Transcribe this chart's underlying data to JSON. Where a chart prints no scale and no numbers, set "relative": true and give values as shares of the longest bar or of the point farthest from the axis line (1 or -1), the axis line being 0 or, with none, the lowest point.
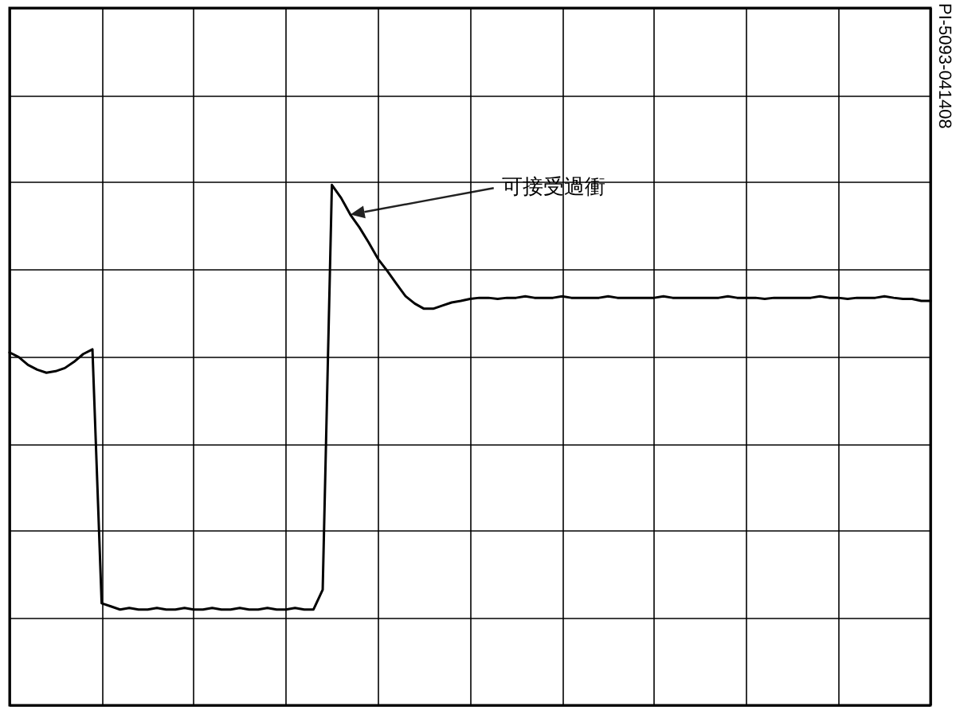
{
  "chart_data": {
    "type": "line",
    "relative": true,
    "grid": true,
    "line_style": "solid",
    "annotations": [
      "可接受過衝",
      "PI-5093-041408"
    ],
    "categories": [
      null,
      null,
      null,
      null,
      null,
      null,
      null,
      null,
      null,
      null,
      null,
      null,
      null,
      null,
      null,
      null,
      null,
      null,
      null,
      null,
      null,
      null,
      null,
      null,
      null,
      null,
      null,
      null,
      null,
      null,
      null,
      null,
      null,
      null,
      null,
      null,
      null,
      null,
      null,
      null,
      null,
      null,
      null,
      null,
      null,
      null,
      null,
      null,
      null,
      null,
      null,
      null,
      null,
      null,
      null,
      null,
      null,
      null,
      null,
      null,
      null,
      null,
      null,
      null,
      null,
      null,
      null,
      null,
      null,
      null,
      null,
      null,
      null,
      null,
      null,
      null,
      null,
      null,
      null,
      null,
      null,
      null,
      null,
      null,
      null,
      null,
      null,
      null,
      null,
      null,
      null,
      null,
      null,
      null,
      null,
      null,
      null,
      null,
      null,
      null,
      null
    ],
    "series": [
      {
        "color": "#000000",
        "values": [
          0.678,
          0.669,
          0.654,
          0.645,
          0.639,
          0.642,
          0.648,
          0.66,
          0.675,
          0.684,
          0.196,
          0.19,
          0.184,
          0.187,
          0.184,
          0.184,
          0.187,
          0.184,
          0.184,
          0.187,
          0.184,
          0.184,
          0.187,
          0.184,
          0.184,
          0.187,
          0.184,
          0.184,
          0.187,
          0.184,
          0.184,
          0.187,
          0.184,
          0.184,
          0.222,
          1.0,
          0.975,
          0.943,
          0.918,
          0.889,
          0.858,
          0.835,
          0.81,
          0.786,
          0.772,
          0.762,
          0.762,
          0.768,
          0.774,
          0.777,
          0.781,
          0.783,
          0.783,
          0.781,
          0.783,
          0.783,
          0.786,
          0.783,
          0.783,
          0.783,
          0.786,
          0.783,
          0.783,
          0.783,
          0.783,
          0.786,
          0.783,
          0.783,
          0.783,
          0.783,
          0.783,
          0.786,
          0.783,
          0.783,
          0.783,
          0.783,
          0.783,
          0.783,
          0.786,
          0.783,
          0.783,
          0.783,
          0.781,
          0.783,
          0.783,
          0.783,
          0.783,
          0.783,
          0.786,
          0.783,
          0.783,
          0.781,
          0.783,
          0.783,
          0.783,
          0.786,
          0.783,
          0.781,
          0.781,
          0.777,
          0.777
        ]
      }
    ]
  }
}
